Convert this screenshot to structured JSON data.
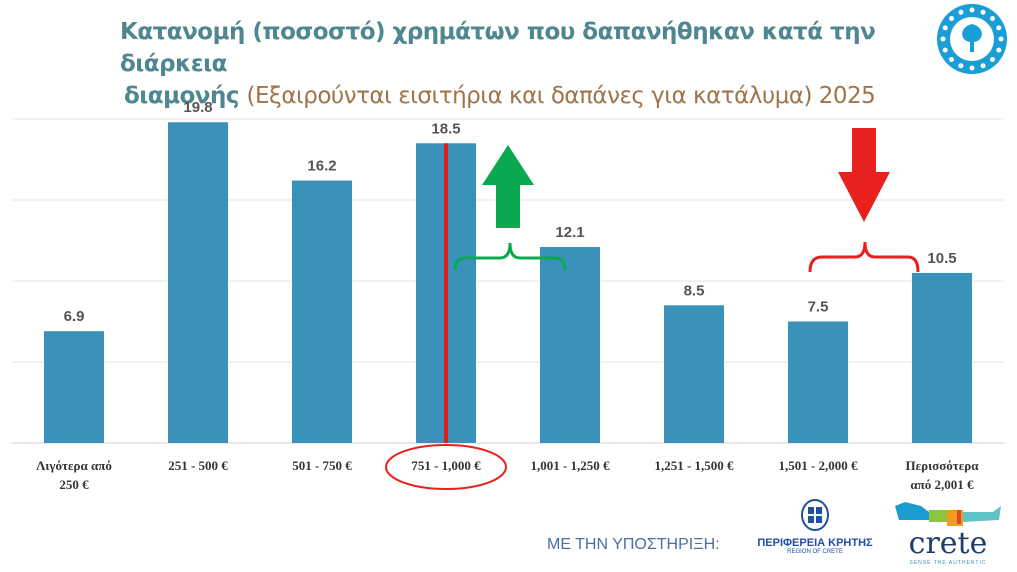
{
  "title": {
    "line1": "Κατανομή (ποσοστό) χρημάτων που δαπανήθηκαν κατά την διάρκεια",
    "line2_main": "διαμονής ",
    "line2_sub": "(Εξαιρούνται εισιτήρια και δαπάνες για κατάλυμα) 2025"
  },
  "chart_data": {
    "type": "bar",
    "categories": [
      "Λιγότερα από 250 €",
      "251 - 500 €",
      "501 - 750 €",
      "751 - 1,000 €",
      "1,001 - 1,250 €",
      "1,251 - 1,500 €",
      "1,501 - 2,000 €",
      "Περισσότερα από 2,001 €"
    ],
    "category_lines": [
      [
        "Λιγότερα από",
        "250 €"
      ],
      [
        "251 - 500 €"
      ],
      [
        "501 - 750 €"
      ],
      [
        "751 - 1,000 €"
      ],
      [
        "1,001 - 1,250 €"
      ],
      [
        "1,251 - 1,500 €"
      ],
      [
        "1,501 - 2,000 €"
      ],
      [
        "Περισσότερα",
        "από 2,001 €"
      ]
    ],
    "values": [
      6.9,
      19.8,
      16.2,
      18.5,
      12.1,
      8.5,
      7.5,
      10.5
    ],
    "ylim": [
      0,
      20
    ],
    "grid": true,
    "bar_color": "#3a92ba",
    "highlighted_category": "751 - 1,000 €",
    "annotations": {
      "up_arrow_color": "#0aa84f",
      "down_arrow_color": "#e8201e",
      "median_line_color": "#e02020"
    }
  },
  "footer": {
    "support_label": "ΜΕ ΤΗΝ ΥΠΟΣΤΗΡΙΞΗ:",
    "region_name": "ΠΕΡΙΦΕΡΕΙΑ ΚΡΗΤΗΣ",
    "region_name_en": "REGION OF CRETE",
    "crete_wordmark": "crete",
    "crete_tagline": "SENSE THE AUTHENTIC"
  }
}
